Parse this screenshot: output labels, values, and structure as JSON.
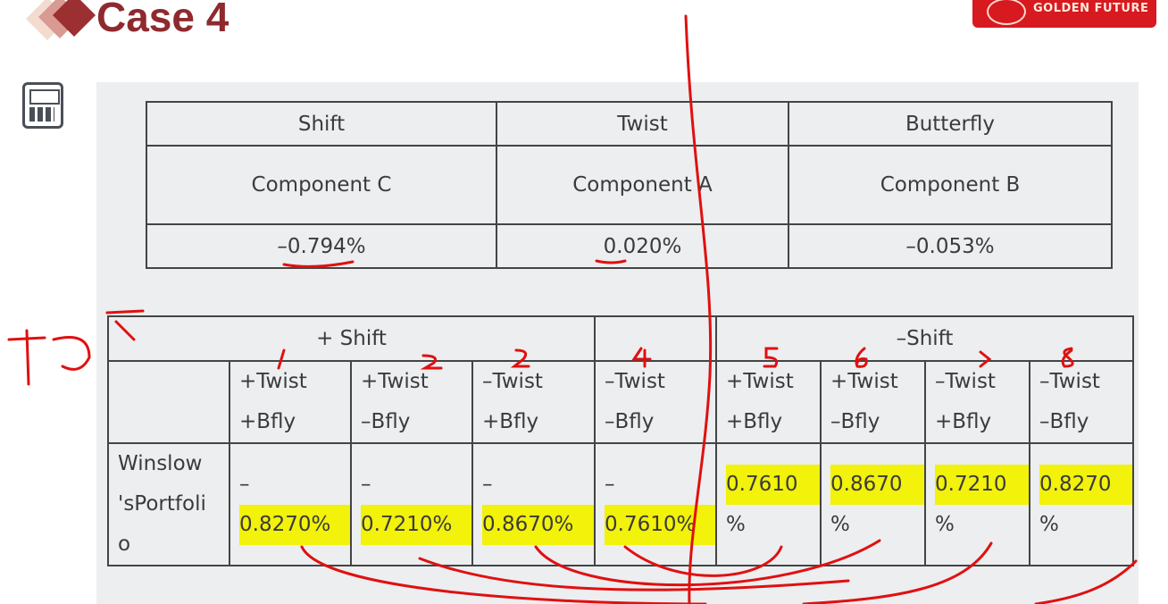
{
  "header": {
    "title": "Case 4",
    "logo_text": "GOLDEN FUTURE",
    "accent": "#8e2a2e",
    "logo_color": "#d71920"
  },
  "icon": "calculator-icon",
  "table1": {
    "headers": [
      "Shift",
      "Twist",
      "Butterfly"
    ],
    "components": [
      "Component C",
      "Component A",
      "Component B"
    ],
    "values": [
      "–0.794%",
      "0.020%",
      "–0.053%"
    ]
  },
  "table2": {
    "groups": [
      "+ Shift",
      "–Shift"
    ],
    "scenarios": [
      [
        "+Twist",
        "+Bfly"
      ],
      [
        "+Twist",
        "–Bfly"
      ],
      [
        "–Twist",
        "+Bfly"
      ],
      [
        "–Twist",
        "–Bfly"
      ],
      [
        "+Twist",
        "+Bfly"
      ],
      [
        "+Twist",
        "–Bfly"
      ],
      [
        "–Twist",
        "+Bfly"
      ],
      [
        "–Twist",
        "–Bfly"
      ]
    ],
    "row_label": "Winslow 'sPortfoli o",
    "values": [
      [
        "–",
        "0.8270%"
      ],
      [
        "–",
        "0.7210%"
      ],
      [
        "–",
        "0.8670%"
      ],
      [
        "–",
        "0.7610%"
      ],
      [
        "0.7610",
        "%"
      ],
      [
        "0.8670",
        "%"
      ],
      [
        "0.7210",
        "%"
      ],
      [
        "0.8270",
        "%"
      ]
    ]
  },
  "annotations": {
    "numbers": [
      "1",
      "2",
      "3",
      "4",
      "5",
      "6",
      "7",
      "8"
    ],
    "ink_color": "#e01010",
    "highlight_color": "#f2f20a"
  }
}
